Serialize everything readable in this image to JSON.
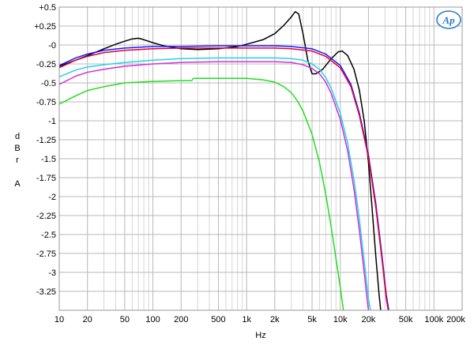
{
  "chart_data": {
    "type": "line",
    "title": "",
    "xlabel": "Hz",
    "ylabel_letters": [
      "d",
      "B",
      "r",
      "",
      "A"
    ],
    "xscale": "log",
    "xlim": [
      10,
      200000
    ],
    "ylim": [
      -3.5,
      0.5
    ],
    "grid": true,
    "x_tick_labels": [
      {
        "v": 10,
        "t": "10"
      },
      {
        "v": 20,
        "t": "20"
      },
      {
        "v": 50,
        "t": "50"
      },
      {
        "v": 100,
        "t": "100"
      },
      {
        "v": 200,
        "t": "200"
      },
      {
        "v": 500,
        "t": "500"
      },
      {
        "v": 1000,
        "t": "1k"
      },
      {
        "v": 2000,
        "t": "2k"
      },
      {
        "v": 5000,
        "t": "5k"
      },
      {
        "v": 10000,
        "t": "10k"
      },
      {
        "v": 20000,
        "t": "20k"
      },
      {
        "v": 50000,
        "t": "50k"
      },
      {
        "v": 100000,
        "t": "100k"
      },
      {
        "v": 200000,
        "t": "200k"
      }
    ],
    "y_tick_labels": [
      {
        "v": 0.5,
        "t": "+0.5"
      },
      {
        "v": 0.25,
        "t": "+0.25"
      },
      {
        "v": 0,
        "t": "-0"
      },
      {
        "v": -0.25,
        "t": "-0.25"
      },
      {
        "v": -0.5,
        "t": "-0.5"
      },
      {
        "v": -0.75,
        "t": "-0.75"
      },
      {
        "v": -1,
        "t": "-1"
      },
      {
        "v": -1.25,
        "t": "-1.25"
      },
      {
        "v": -1.5,
        "t": "-1.5"
      },
      {
        "v": -1.75,
        "t": "-1.75"
      },
      {
        "v": -2,
        "t": "-2"
      },
      {
        "v": -2.25,
        "t": "-2.25"
      },
      {
        "v": -2.5,
        "t": "-2.5"
      },
      {
        "v": -2.75,
        "t": "-2.75"
      },
      {
        "v": -3,
        "t": "-3"
      },
      {
        "v": -3.25,
        "t": "-3.25"
      }
    ],
    "series": [
      {
        "color": "#000000",
        "points": [
          [
            10,
            -0.28
          ],
          [
            15,
            -0.2
          ],
          [
            20,
            -0.14
          ],
          [
            30,
            -0.05
          ],
          [
            40,
            0.01
          ],
          [
            50,
            0.05
          ],
          [
            60,
            0.08
          ],
          [
            70,
            0.09
          ],
          [
            80,
            0.07
          ],
          [
            100,
            0.03
          ],
          [
            130,
            -0.01
          ],
          [
            200,
            -0.05
          ],
          [
            300,
            -0.06
          ],
          [
            500,
            -0.05
          ],
          [
            800,
            -0.02
          ],
          [
            1000,
            0.01
          ],
          [
            1500,
            0.07
          ],
          [
            2000,
            0.15
          ],
          [
            2500,
            0.26
          ],
          [
            3000,
            0.37
          ],
          [
            3300,
            0.44
          ],
          [
            3600,
            0.41
          ],
          [
            4000,
            0.15
          ],
          [
            4500,
            -0.2
          ],
          [
            5000,
            -0.38
          ],
          [
            5500,
            -0.38
          ],
          [
            6500,
            -0.32
          ],
          [
            8000,
            -0.18
          ],
          [
            9500,
            -0.09
          ],
          [
            10500,
            -0.08
          ],
          [
            12000,
            -0.14
          ],
          [
            14000,
            -0.32
          ],
          [
            16000,
            -0.6
          ],
          [
            18000,
            -1.0
          ],
          [
            20000,
            -1.55
          ],
          [
            22000,
            -2.2
          ],
          [
            24000,
            -2.8
          ],
          [
            26000,
            -3.3
          ],
          [
            27000,
            -3.5
          ]
        ]
      },
      {
        "color": "#1a1aff",
        "points": [
          [
            10,
            -0.27
          ],
          [
            15,
            -0.17
          ],
          [
            20,
            -0.12
          ],
          [
            30,
            -0.07
          ],
          [
            50,
            -0.04
          ],
          [
            100,
            -0.02
          ],
          [
            200,
            -0.02
          ],
          [
            500,
            -0.01
          ],
          [
            1000,
            -0.01
          ],
          [
            2000,
            -0.01
          ],
          [
            3000,
            -0.02
          ],
          [
            5000,
            -0.05
          ],
          [
            7000,
            -0.12
          ],
          [
            10000,
            -0.27
          ],
          [
            13000,
            -0.52
          ],
          [
            16000,
            -0.9
          ],
          [
            20000,
            -1.45
          ],
          [
            24000,
            -2.1
          ],
          [
            28000,
            -2.8
          ],
          [
            31000,
            -3.3
          ],
          [
            33000,
            -3.5
          ]
        ]
      },
      {
        "color": "#e0003a",
        "points": [
          [
            10,
            -0.3
          ],
          [
            15,
            -0.2
          ],
          [
            20,
            -0.15
          ],
          [
            30,
            -0.1
          ],
          [
            50,
            -0.07
          ],
          [
            100,
            -0.05
          ],
          [
            200,
            -0.04
          ],
          [
            500,
            -0.04
          ],
          [
            1000,
            -0.04
          ],
          [
            2000,
            -0.04
          ],
          [
            3000,
            -0.05
          ],
          [
            5000,
            -0.08
          ],
          [
            7000,
            -0.15
          ],
          [
            10000,
            -0.3
          ],
          [
            13000,
            -0.55
          ],
          [
            16000,
            -0.93
          ],
          [
            20000,
            -1.48
          ],
          [
            24000,
            -2.15
          ],
          [
            28000,
            -2.85
          ],
          [
            31000,
            -3.35
          ],
          [
            32500,
            -3.5
          ]
        ]
      },
      {
        "color": "#22d3e8",
        "points": [
          [
            10,
            -0.42
          ],
          [
            15,
            -0.33
          ],
          [
            20,
            -0.29
          ],
          [
            30,
            -0.26
          ],
          [
            50,
            -0.23
          ],
          [
            100,
            -0.2
          ],
          [
            200,
            -0.18
          ],
          [
            500,
            -0.17
          ],
          [
            1000,
            -0.17
          ],
          [
            2000,
            -0.17
          ],
          [
            3000,
            -0.18
          ],
          [
            4000,
            -0.2
          ],
          [
            5000,
            -0.25
          ],
          [
            6000,
            -0.32
          ],
          [
            7000,
            -0.43
          ],
          [
            8000,
            -0.57
          ],
          [
            10000,
            -0.9
          ],
          [
            12000,
            -1.3
          ],
          [
            14000,
            -1.78
          ],
          [
            16000,
            -2.3
          ],
          [
            18000,
            -2.85
          ],
          [
            20000,
            -3.35
          ],
          [
            21000,
            -3.5
          ]
        ]
      },
      {
        "color": "#d030d8",
        "points": [
          [
            10,
            -0.52
          ],
          [
            15,
            -0.41
          ],
          [
            20,
            -0.36
          ],
          [
            30,
            -0.32
          ],
          [
            50,
            -0.28
          ],
          [
            100,
            -0.25
          ],
          [
            200,
            -0.23
          ],
          [
            500,
            -0.22
          ],
          [
            1000,
            -0.22
          ],
          [
            2000,
            -0.22
          ],
          [
            3000,
            -0.23
          ],
          [
            4000,
            -0.26
          ],
          [
            5000,
            -0.31
          ],
          [
            6000,
            -0.38
          ],
          [
            7000,
            -0.49
          ],
          [
            8000,
            -0.64
          ],
          [
            10000,
            -0.98
          ],
          [
            12000,
            -1.4
          ],
          [
            14000,
            -1.9
          ],
          [
            16000,
            -2.45
          ],
          [
            18000,
            -3.0
          ],
          [
            19500,
            -3.4
          ],
          [
            20000,
            -3.5
          ]
        ]
      },
      {
        "color": "#22dd22",
        "points": [
          [
            10,
            -0.78
          ],
          [
            15,
            -0.67
          ],
          [
            20,
            -0.6
          ],
          [
            30,
            -0.55
          ],
          [
            50,
            -0.5
          ],
          [
            100,
            -0.48
          ],
          [
            200,
            -0.47
          ],
          [
            260,
            -0.47
          ],
          [
            270,
            -0.44
          ],
          [
            500,
            -0.44
          ],
          [
            1000,
            -0.44
          ],
          [
            1500,
            -0.46
          ],
          [
            2000,
            -0.49
          ],
          [
            2500,
            -0.55
          ],
          [
            3000,
            -0.63
          ],
          [
            3500,
            -0.74
          ],
          [
            4000,
            -0.87
          ],
          [
            5000,
            -1.18
          ],
          [
            6000,
            -1.55
          ],
          [
            7000,
            -1.97
          ],
          [
            8000,
            -2.4
          ],
          [
            9000,
            -2.82
          ],
          [
            10000,
            -3.2
          ],
          [
            10800,
            -3.5
          ]
        ]
      }
    ]
  },
  "logo": {
    "text": "Ap",
    "color": "#2a7bd1"
  }
}
